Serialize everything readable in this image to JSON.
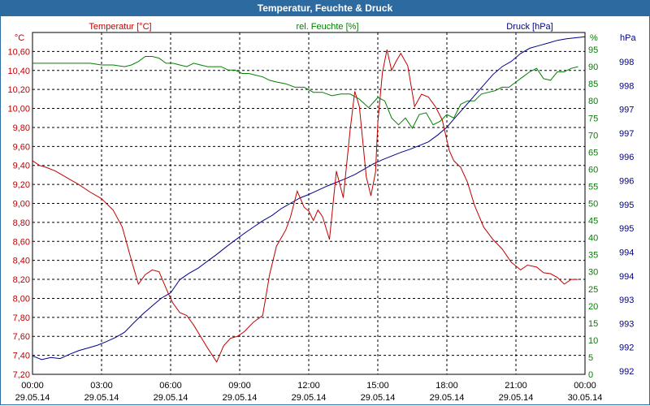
{
  "window": {
    "title": "Temperatur, Feuchte & Druck"
  },
  "chart_data": {
    "type": "line",
    "title": "Temperatur, Feuchte & Druck",
    "colors": {
      "temp": "#c00000",
      "hum": "#008000",
      "press": "#00008b",
      "text": "#000000",
      "grid": "#000000"
    },
    "x_ticks": [
      {
        "time": "00:00",
        "date": "29.05.14"
      },
      {
        "time": "03:00",
        "date": "29.05.14"
      },
      {
        "time": "06:00",
        "date": "29.05.14"
      },
      {
        "time": "09:00",
        "date": "29.05.14"
      },
      {
        "time": "12:00",
        "date": "29.05.14"
      },
      {
        "time": "15:00",
        "date": "29.05.14"
      },
      {
        "time": "18:00",
        "date": "29.05.14"
      },
      {
        "time": "21:00",
        "date": "29.05.14"
      },
      {
        "time": "00:00",
        "date": "30.05.14"
      }
    ],
    "x_range_hours": [
      0,
      24
    ],
    "temperature": {
      "name": "Temperatur [°C]",
      "unit": "°C",
      "ylim": [
        7.2,
        10.8
      ],
      "tick_labels": [
        "7,20",
        "7,40",
        "7,60",
        "7,80",
        "8,00",
        "8,20",
        "8,40",
        "8,60",
        "8,80",
        "9,00",
        "9,20",
        "9,40",
        "9,60",
        "9,80",
        "10,00",
        "10,20",
        "10,40",
        "10,60"
      ],
      "x": [
        0,
        0.3,
        0.6,
        1.0,
        1.5,
        2.0,
        2.5,
        3.0,
        3.5,
        3.9,
        4.3,
        4.6,
        4.9,
        5.2,
        5.5,
        5.9,
        6.1,
        6.4,
        6.7,
        7.0,
        7.3,
        7.6,
        8.0,
        8.3,
        8.6,
        8.9,
        9.2,
        9.6,
        10.0,
        10.3,
        10.6,
        11.0,
        11.2,
        11.5,
        11.8,
        12.0,
        12.2,
        12.4,
        12.6,
        12.9,
        13.2,
        13.5,
        13.8,
        14.0,
        14.2,
        14.5,
        14.7,
        14.9,
        15.0,
        15.2,
        15.4,
        15.6,
        15.8,
        16.0,
        16.3,
        16.6,
        16.9,
        17.2,
        17.5,
        17.8,
        18.1,
        18.3,
        18.6,
        18.9,
        19.2,
        19.6,
        20.0,
        20.4,
        20.8,
        21.2,
        21.5,
        21.9,
        22.2,
        22.5,
        22.8,
        23.1,
        23.4,
        23.7
      ],
      "values": [
        9.45,
        9.4,
        9.38,
        9.34,
        9.27,
        9.2,
        9.12,
        9.05,
        8.93,
        8.75,
        8.4,
        8.15,
        8.25,
        8.3,
        8.28,
        8.05,
        7.95,
        7.85,
        7.82,
        7.72,
        7.6,
        7.48,
        7.33,
        7.5,
        7.58,
        7.6,
        7.65,
        7.75,
        7.82,
        8.25,
        8.55,
        8.72,
        8.85,
        9.13,
        8.96,
        8.92,
        8.82,
        8.93,
        8.86,
        8.62,
        9.34,
        9.06,
        9.78,
        10.18,
        10.02,
        9.28,
        9.08,
        9.33,
        9.85,
        10.38,
        10.62,
        10.4,
        10.5,
        10.58,
        10.45,
        10.02,
        10.15,
        10.12,
        10.02,
        9.88,
        9.56,
        9.45,
        9.38,
        9.22,
        8.98,
        8.75,
        8.62,
        8.52,
        8.38,
        8.3,
        8.35,
        8.33,
        8.27,
        8.26,
        8.22,
        8.15,
        8.2,
        8.2
      ]
    },
    "humidity": {
      "name": "rel. Feuchte [%]",
      "unit": "%",
      "ylim": [
        0,
        100
      ],
      "tick_labels": [
        "0",
        "5",
        "10",
        "15",
        "20",
        "25",
        "30",
        "35",
        "40",
        "45",
        "50",
        "55",
        "60",
        "65",
        "70",
        "75",
        "80",
        "85",
        "90",
        "95"
      ],
      "x": [
        0,
        0.5,
        1.0,
        1.5,
        2.0,
        2.5,
        3.0,
        3.5,
        4.0,
        4.3,
        4.6,
        4.9,
        5.2,
        5.5,
        5.8,
        6.1,
        6.4,
        6.7,
        7.0,
        7.3,
        7.6,
        7.9,
        8.2,
        8.5,
        8.8,
        9.1,
        9.4,
        9.7,
        10.0,
        10.3,
        10.6,
        11.0,
        11.4,
        11.8,
        12.2,
        12.6,
        13.0,
        13.4,
        13.8,
        14.2,
        14.6,
        15.0,
        15.3,
        15.6,
        15.9,
        16.2,
        16.5,
        16.8,
        17.1,
        17.4,
        17.7,
        18.0,
        18.3,
        18.6,
        18.9,
        19.2,
        19.5,
        19.8,
        20.1,
        20.4,
        20.7,
        21.0,
        21.3,
        21.6,
        21.9,
        22.2,
        22.5,
        22.8,
        23.1,
        23.4,
        23.7
      ],
      "values": [
        91,
        91,
        91,
        91,
        91,
        91,
        90.5,
        90.5,
        90,
        90.5,
        91.5,
        93,
        93,
        92.5,
        91,
        91,
        90.5,
        90,
        91,
        90.5,
        90,
        90,
        90,
        89,
        89,
        88,
        88,
        87.5,
        87,
        86,
        85.5,
        85,
        84,
        84,
        82.5,
        82.5,
        81.5,
        82,
        82,
        80.5,
        78,
        81,
        80,
        75,
        73,
        75,
        72,
        76,
        76.5,
        73,
        74,
        76,
        75,
        79,
        80,
        80,
        82,
        82.5,
        83,
        84,
        84,
        85.5,
        87,
        88.5,
        89.5,
        86.5,
        86,
        88.5,
        88.5,
        89.5,
        90
      ]
    },
    "pressure": {
      "name": "Druck [hPa]",
      "unit": "hPa",
      "ylim": [
        991.8,
        998.3
      ],
      "tick_labels": [
        "992",
        "992",
        "993",
        "993",
        "994",
        "994",
        "995",
        "995",
        "996",
        "996",
        "997",
        "997",
        "998",
        "998"
      ],
      "x": [
        0,
        0.4,
        0.8,
        1.2,
        1.6,
        2.0,
        2.4,
        2.8,
        3.2,
        3.6,
        4.0,
        4.4,
        4.8,
        5.2,
        5.6,
        6.0,
        6.4,
        6.8,
        7.2,
        7.6,
        8.0,
        8.4,
        8.8,
        9.2,
        9.6,
        10.0,
        10.4,
        10.8,
        11.2,
        11.6,
        12.0,
        12.4,
        12.8,
        13.2,
        13.6,
        14.0,
        14.4,
        14.8,
        15.2,
        15.6,
        16.0,
        16.4,
        16.8,
        17.2,
        17.6,
        18.0,
        18.4,
        18.8,
        19.2,
        19.6,
        20.0,
        20.4,
        20.8,
        21.2,
        21.6,
        22.0,
        22.4,
        22.8,
        23.2,
        23.6,
        24.0
      ],
      "values": [
        992.15,
        992.08,
        992.12,
        992.1,
        992.18,
        992.25,
        992.3,
        992.35,
        992.42,
        992.5,
        992.6,
        992.78,
        992.95,
        993.1,
        993.25,
        993.35,
        993.6,
        993.72,
        993.82,
        993.95,
        994.08,
        994.22,
        994.35,
        994.48,
        994.6,
        994.72,
        994.82,
        994.95,
        995.05,
        995.15,
        995.22,
        995.3,
        995.38,
        995.45,
        995.52,
        995.6,
        995.7,
        995.8,
        995.88,
        995.95,
        996.02,
        996.08,
        996.15,
        996.22,
        996.35,
        996.5,
        996.7,
        996.9,
        997.1,
        997.3,
        997.5,
        997.65,
        997.75,
        997.9,
        998.0,
        998.05,
        998.1,
        998.15,
        998.18,
        998.2,
        998.22
      ]
    }
  }
}
